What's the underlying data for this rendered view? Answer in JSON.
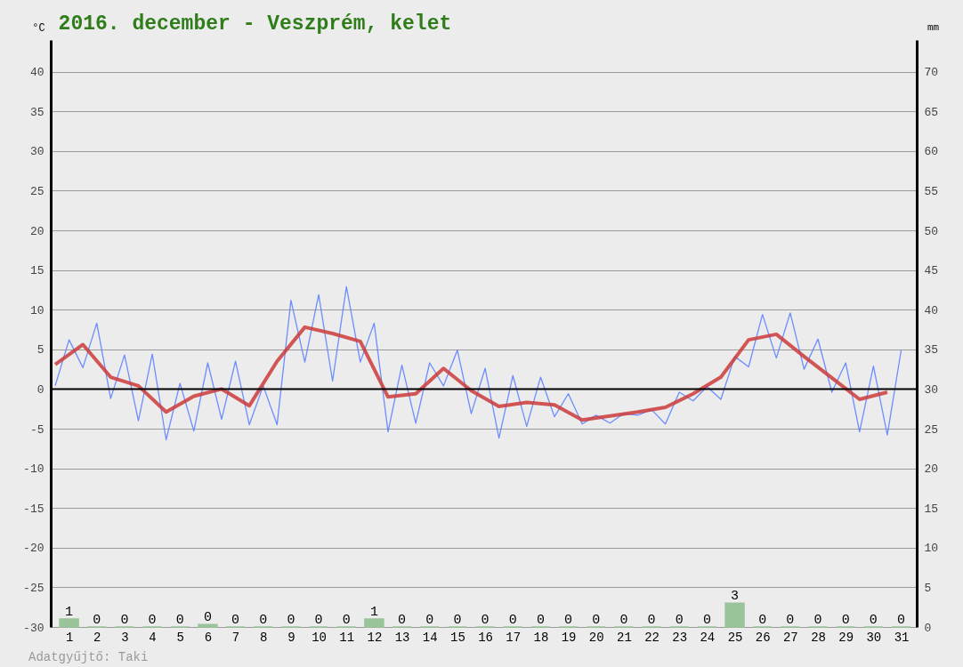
{
  "chart_data": {
    "type": "line",
    "title": "2016. december - Veszprém, kelet",
    "ylabel": "°C",
    "y2label": "mm",
    "xlim": [
      0.5,
      31.4
    ],
    "xticks": [
      1,
      2,
      3,
      4,
      5,
      6,
      7,
      8,
      9,
      10,
      11,
      12,
      13,
      14,
      15,
      16,
      17,
      18,
      19,
      20,
      21,
      22,
      23,
      24,
      25,
      26,
      27,
      28,
      29,
      30,
      31
    ],
    "ylim": [
      -30,
      44
    ],
    "yticks": [
      -30,
      -25,
      -20,
      -15,
      -10,
      -5,
      0,
      5,
      10,
      15,
      20,
      25,
      30,
      35,
      40
    ],
    "y2lim": [
      0,
      74
    ],
    "y2ticks": [
      0,
      5,
      10,
      15,
      20,
      25,
      30,
      35,
      40,
      45,
      50,
      55,
      60,
      65,
      70
    ],
    "grid": "y",
    "ref_lines": [
      {
        "axis": "y",
        "value": 0,
        "color": "#000000"
      }
    ],
    "annotations": [
      "Adatgyűjtő: Taki"
    ],
    "series": [
      {
        "color": "#6688ff",
        "x": [
          0.5,
          1,
          1.5,
          2,
          2.5,
          3,
          3.5,
          4,
          4.5,
          5,
          5.5,
          6,
          6.5,
          7,
          7.5,
          8,
          8.5,
          9,
          9.5,
          10,
          10.5,
          11,
          11.5,
          12,
          12.5,
          13,
          13.5,
          14,
          14.5,
          15,
          15.5,
          16,
          16.5,
          17,
          17.5,
          18,
          18.5,
          19,
          19.5,
          20,
          20.5,
          21,
          21.5,
          22,
          22.5,
          23,
          23.5,
          24,
          24.5,
          25,
          25.5,
          26,
          26.5,
          27,
          27.5,
          28,
          28.5,
          29,
          29.5,
          30,
          30.5,
          31
        ],
        "values": [
          0.4,
          6.2,
          2.7,
          8.3,
          -1.2,
          4.3,
          -4.0,
          4.4,
          -6.4,
          0.7,
          -5.3,
          3.3,
          -3.8,
          3.5,
          -4.5,
          0.4,
          -4.5,
          11.2,
          3.4,
          11.9,
          1.0,
          12.9,
          3.4,
          8.3,
          -5.4,
          3.0,
          -4.3,
          3.3,
          0.4,
          4.9,
          -3.1,
          2.6,
          -6.2,
          1.7,
          -4.7,
          1.5,
          -3.5,
          -0.6,
          -4.4,
          -3.3,
          -4.3,
          -3.1,
          -3.3,
          -2.6,
          -4.4,
          -0.4,
          -1.5,
          0.3,
          -1.3,
          4.1,
          2.8,
          9.4,
          3.9,
          9.6,
          2.5,
          6.3,
          -0.4,
          3.3,
          -5.4,
          2.9,
          -5.8,
          4.9
        ]
      },
      {
        "color": "#cc3b3b",
        "x": [
          0.5,
          1.5,
          2.5,
          3.5,
          4.5,
          5.5,
          6.5,
          7.5,
          8.5,
          9.5,
          10.5,
          11.5,
          12.5,
          13.5,
          14.5,
          15.5,
          16.5,
          17.5,
          18.5,
          19.5,
          20.5,
          21.5,
          22.5,
          23.5,
          24.5,
          25.5,
          26.5,
          27.5,
          28.5,
          29.5,
          30.5
        ],
        "values": [
          3.1,
          5.6,
          1.5,
          0.4,
          -2.9,
          -0.9,
          0.0,
          -2.1,
          3.5,
          7.8,
          7.0,
          6.0,
          -1.0,
          -0.6,
          2.6,
          -0.2,
          -2.2,
          -1.7,
          -2.0,
          -3.9,
          -3.4,
          -2.9,
          -2.3,
          -0.6,
          1.5,
          6.2,
          6.9,
          4.1,
          1.4,
          -1.3,
          -0.4
        ]
      },
      {
        "type": "bar",
        "axis": "y2",
        "color": "#99c499",
        "x": [
          1,
          2,
          3,
          4,
          5,
          6,
          7,
          8,
          9,
          10,
          11,
          12,
          13,
          14,
          15,
          16,
          17,
          18,
          19,
          20,
          21,
          22,
          23,
          24,
          25,
          26,
          27,
          28,
          29,
          30,
          31
        ],
        "values": [
          1,
          0,
          0,
          0,
          0,
          0.3,
          0,
          0,
          0,
          0,
          0,
          1,
          0,
          0,
          0,
          0,
          0,
          0,
          0,
          0,
          0,
          0,
          0,
          0,
          3,
          0,
          0,
          0,
          0,
          0,
          0
        ],
        "value_labels": [
          "1",
          "0",
          "0",
          "0",
          "0",
          "0",
          "0",
          "0",
          "0",
          "0",
          "0",
          "1",
          "0",
          "0",
          "0",
          "0",
          "0",
          "0",
          "0",
          "0",
          "0",
          "0",
          "0",
          "0",
          "3",
          "0",
          "0",
          "0",
          "0",
          "0",
          "0"
        ]
      }
    ]
  }
}
